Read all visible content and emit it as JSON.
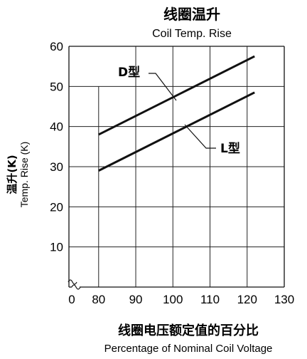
{
  "chart_data": {
    "type": "line",
    "title": "线圈温升",
    "subtitle": "Coil Temp. Rise",
    "ylabel": "温升(K)",
    "ylabel_en": "Temp. Rise (K)",
    "xlabel": "线圈电压额定值的百分比",
    "xlabel_en": "Percentage of Nominal Coil Voltage",
    "xlim": [
      72,
      130
    ],
    "ylim": [
      0,
      60
    ],
    "x_axis_break": true,
    "x_ticks": [
      "0",
      "80",
      "90",
      "100",
      "110",
      "120",
      "130"
    ],
    "y_ticks": [
      "10",
      "20",
      "30",
      "40",
      "50",
      "60"
    ],
    "grid": true,
    "series": [
      {
        "name": "D型",
        "x": [
          80,
          122
        ],
        "y": [
          38,
          57.5
        ],
        "color": "#111111"
      },
      {
        "name": "L型",
        "x": [
          80,
          122
        ],
        "y": [
          29,
          48.5
        ],
        "color": "#111111"
      }
    ]
  }
}
